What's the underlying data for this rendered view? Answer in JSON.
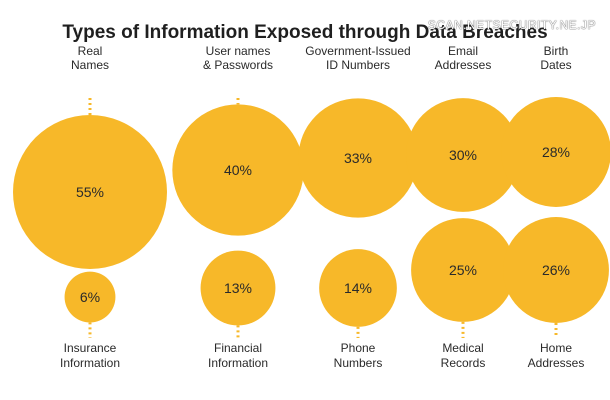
{
  "watermark": "SCAN.NETSECURITY.NE.JP",
  "chart_data": {
    "type": "bubble",
    "title": "Types of Information Exposed through Data Breaches",
    "color": "#F7B829",
    "leader_color": "#F7B829",
    "value_format": "percent",
    "items": [
      {
        "label": [
          "Real",
          "Names"
        ],
        "value": 55,
        "row": "top"
      },
      {
        "label": [
          "User names",
          "& Passwords"
        ],
        "value": 40,
        "row": "top"
      },
      {
        "label": [
          "Government-Issued",
          "ID Numbers"
        ],
        "value": 33,
        "row": "top"
      },
      {
        "label": [
          "Email",
          "Addresses"
        ],
        "value": 30,
        "row": "top"
      },
      {
        "label": [
          "Birth",
          "Dates"
        ],
        "value": 28,
        "row": "top"
      },
      {
        "label": [
          "Insurance",
          "Information"
        ],
        "value": 6,
        "row": "bottom"
      },
      {
        "label": [
          "Financial",
          "Information"
        ],
        "value": 13,
        "row": "bottom"
      },
      {
        "label": [
          "Phone",
          "Numbers"
        ],
        "value": 14,
        "row": "bottom"
      },
      {
        "label": [
          "Medical",
          "Records"
        ],
        "value": 25,
        "row": "bottom"
      },
      {
        "label": [
          "Home",
          "Addresses"
        ],
        "value": 26,
        "row": "bottom"
      }
    ]
  }
}
